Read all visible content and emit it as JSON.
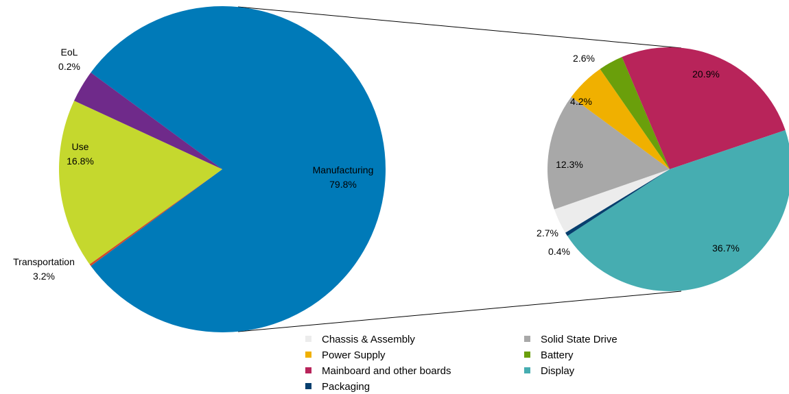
{
  "chart_data": [
    {
      "type": "pie",
      "slices": [
        {
          "name": "Manufacturing",
          "value": 79.8,
          "label": "79.8%",
          "color": "#007ab8"
        },
        {
          "name": "EoL",
          "value": 0.2,
          "label": "0.2%",
          "color": "#d24a2b"
        },
        {
          "name": "Use",
          "value": 16.8,
          "label": "16.8%",
          "color": "#c5d82e"
        },
        {
          "name": "Transportation",
          "value": 3.2,
          "label": "3.2%",
          "color": "#6f2a8a"
        }
      ]
    },
    {
      "type": "pie",
      "slices": [
        {
          "name": "Mainboard and other boards",
          "value": 20.9,
          "label": "20.9%",
          "color": "#b8245a"
        },
        {
          "name": "Display",
          "value": 36.7,
          "label": "36.7%",
          "color": "#46adb1"
        },
        {
          "name": "Packaging",
          "value": 0.4,
          "label": "0.4%",
          "color": "#073f6e"
        },
        {
          "name": "Chassis & Assembly",
          "value": 2.7,
          "label": "2.7%",
          "color": "#ececec"
        },
        {
          "name": "Solid State Drive",
          "value": 12.3,
          "label": "12.3%",
          "color": "#a8a8a8"
        },
        {
          "name": "Power Supply",
          "value": 4.2,
          "label": "4.2%",
          "color": "#f0b000"
        },
        {
          "name": "Battery",
          "value": 2.6,
          "label": "2.6%",
          "color": "#6a9f0b"
        }
      ],
      "legend": [
        "Chassis & Assembly",
        "Solid State Drive",
        "Power Supply",
        "Battery",
        "Mainboard and other boards",
        "Display",
        "Packaging"
      ]
    }
  ]
}
